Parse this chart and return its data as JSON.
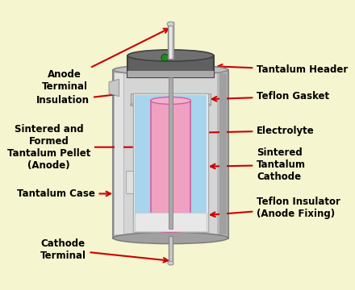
{
  "bg_color": "#f5f5d0",
  "labels": {
    "anode_terminal": "Anode\nTerminal",
    "tantalum_header": "Tantalum Header",
    "insulation": "Insulation",
    "teflon_gasket": "Teflon Gasket",
    "sintered_pellet": "Sintered and\nFormed\nTantalum Pellet\n(Anode)",
    "electrolyte": "Electrolyte",
    "sintered_cathode": "Sintered\nTantalum\nCathode",
    "tantalum_case": "Tantalum Case",
    "teflon_insulator": "Teflon Insulator\n(Anode Fixing)",
    "cathode_terminal": "Cathode\nTerminal"
  },
  "colors": {
    "bg": "#f5f5d0",
    "arrow": "#cc0000",
    "label_text": "#000000"
  },
  "font_size": 8.5
}
